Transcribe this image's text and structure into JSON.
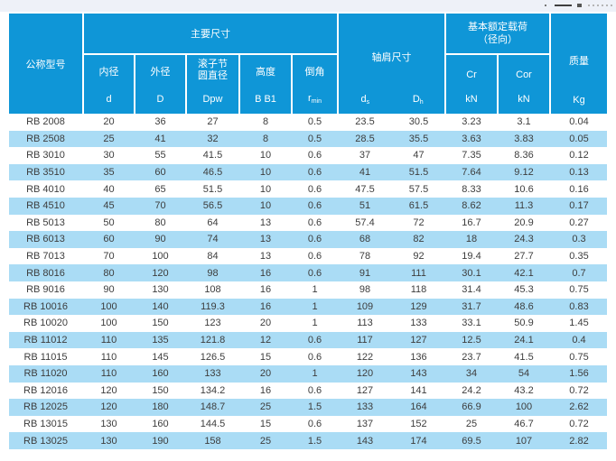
{
  "colors": {
    "header_blue": "#0f96d7",
    "row_alt_blue": "#aadcf5",
    "top_strip": "#eef1f8",
    "data_text": "#3d3d3d"
  },
  "table": {
    "header": {
      "model": "公称型号",
      "main_dims": "主要尺寸",
      "shoulder_dims": "轴肩尺寸",
      "load_line1": "基本额定载荷",
      "load_line2": "（径向）",
      "mass": "质量",
      "sub": {
        "bore": "内径",
        "bore_sym": "d",
        "od": "外径",
        "od_sym": "D",
        "pitch_line1": "滚子节",
        "pitch_line2": "圆直径",
        "pitch_sym": "Dpw",
        "height": "高度",
        "height_sym": "B B1",
        "chamfer": "倒角",
        "chamfer_sym_main": "r",
        "chamfer_sym_sub": "min",
        "ds_main": "d",
        "ds_sub": "s",
        "dh_main": "D",
        "dh_sub": "h",
        "cr": "Cr",
        "cr_unit": "kN",
        "cor": "Cor",
        "cor_unit": "kN",
        "mass_unit": "Kg"
      }
    },
    "rows": [
      [
        "RB 2008",
        "20",
        "36",
        "27",
        "8",
        "0.5",
        "23.5",
        "30.5",
        "3.23",
        "3.1",
        "0.04"
      ],
      [
        "RB 2508",
        "25",
        "41",
        "32",
        "8",
        "0.5",
        "28.5",
        "35.5",
        "3.63",
        "3.83",
        "0.05"
      ],
      [
        "RB 3010",
        "30",
        "55",
        "41.5",
        "10",
        "0.6",
        "37",
        "47",
        "7.35",
        "8.36",
        "0.12"
      ],
      [
        "RB 3510",
        "35",
        "60",
        "46.5",
        "10",
        "0.6",
        "41",
        "51.5",
        "7.64",
        "9.12",
        "0.13"
      ],
      [
        "RB 4010",
        "40",
        "65",
        "51.5",
        "10",
        "0.6",
        "47.5",
        "57.5",
        "8.33",
        "10.6",
        "0.16"
      ],
      [
        "RB 4510",
        "45",
        "70",
        "56.5",
        "10",
        "0.6",
        "51",
        "61.5",
        "8.62",
        "11.3",
        "0.17"
      ],
      [
        "RB 5013",
        "50",
        "80",
        "64",
        "13",
        "0.6",
        "57.4",
        "72",
        "16.7",
        "20.9",
        "0.27"
      ],
      [
        "RB 6013",
        "60",
        "90",
        "74",
        "13",
        "0.6",
        "68",
        "82",
        "18",
        "24.3",
        "0.3"
      ],
      [
        "RB 7013",
        "70",
        "100",
        "84",
        "13",
        "0.6",
        "78",
        "92",
        "19.4",
        "27.7",
        "0.35"
      ],
      [
        "RB 8016",
        "80",
        "120",
        "98",
        "16",
        "0.6",
        "91",
        "111",
        "30.1",
        "42.1",
        "0.7"
      ],
      [
        "RB 9016",
        "90",
        "130",
        "108",
        "16",
        "1",
        "98",
        "118",
        "31.4",
        "45.3",
        "0.75"
      ],
      [
        "RB 10016",
        "100",
        "140",
        "119.3",
        "16",
        "1",
        "109",
        "129",
        "31.7",
        "48.6",
        "0.83"
      ],
      [
        "RB 10020",
        "100",
        "150",
        "123",
        "20",
        "1",
        "113",
        "133",
        "33.1",
        "50.9",
        "1.45"
      ],
      [
        "RB 11012",
        "110",
        "135",
        "121.8",
        "12",
        "0.6",
        "117",
        "127",
        "12.5",
        "24.1",
        "0.4"
      ],
      [
        "RB 11015",
        "110",
        "145",
        "126.5",
        "15",
        "0.6",
        "122",
        "136",
        "23.7",
        "41.5",
        "0.75"
      ],
      [
        "RB 11020",
        "110",
        "160",
        "133",
        "20",
        "1",
        "120",
        "143",
        "34",
        "54",
        "1.56"
      ],
      [
        "RB 12016",
        "120",
        "150",
        "134.2",
        "16",
        "0.6",
        "127",
        "141",
        "24.2",
        "43.2",
        "0.72"
      ],
      [
        "RB 12025",
        "120",
        "180",
        "148.7",
        "25",
        "1.5",
        "133",
        "164",
        "66.9",
        "100",
        "2.62"
      ],
      [
        "RB 13015",
        "130",
        "160",
        "144.5",
        "15",
        "0.6",
        "137",
        "152",
        "25",
        "46.7",
        "0.72"
      ],
      [
        "RB 13025",
        "130",
        "190",
        "158",
        "25",
        "1.5",
        "143",
        "174",
        "69.5",
        "107",
        "2.82"
      ]
    ]
  }
}
